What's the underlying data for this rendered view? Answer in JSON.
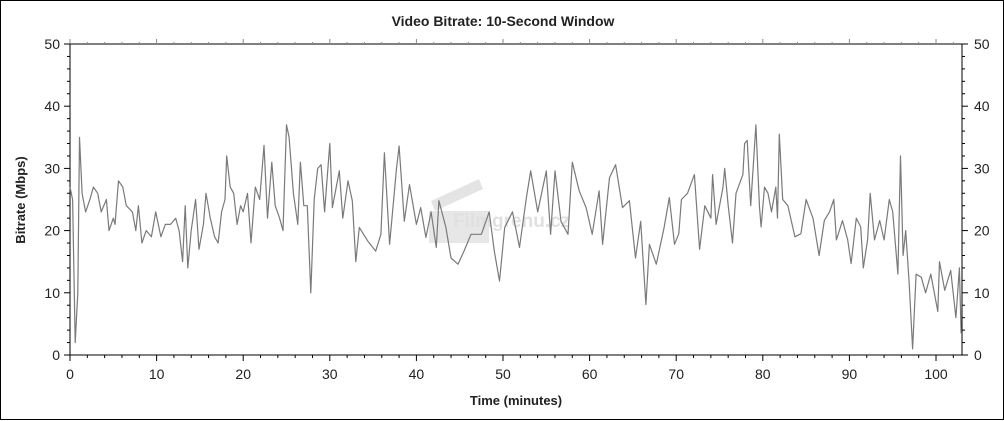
{
  "chart_data": {
    "type": "line",
    "title": "Video Bitrate: 10-Second Window",
    "xlabel": "Time (minutes)",
    "ylabel": "Bitrate (Mbps)",
    "xlim": [
      0,
      103
    ],
    "ylim": [
      0,
      50
    ],
    "x_ticks": [
      0,
      10,
      20,
      30,
      40,
      50,
      60,
      70,
      80,
      90,
      100
    ],
    "y_ticks": [
      0,
      10,
      20,
      30,
      40,
      50
    ],
    "secondary_y_axis": "right, same scale",
    "grid": false,
    "legend": "none",
    "line_color": "#7a7a7a",
    "watermark": "Filmgrenu.cz",
    "series": [
      {
        "x": [
          0,
          0.3,
          0.6,
          0.9,
          1.1,
          1.4,
          1.8,
          2.3,
          2.7,
          3.2,
          3.6,
          4.2,
          4.5,
          5,
          5.2,
          5.6,
          6.1,
          6.5,
          7.2,
          7.6,
          7.9,
          8.3,
          8.8,
          9.4,
          9.9,
          10.5,
          11,
          11.6,
          12.2,
          12.6,
          13,
          13.3,
          13.6,
          14,
          14.5,
          14.9,
          15.4,
          15.7,
          16.2,
          16.7,
          17.1,
          17.5,
          17.9,
          18.1,
          18.5,
          18.9,
          19.3,
          19.7,
          20,
          20.5,
          20.9,
          21.4,
          21.9,
          22.4,
          22.8,
          23.3,
          23.7,
          24.2,
          24.6,
          25,
          25.3,
          25.8,
          26.3,
          26.6,
          27,
          27.4,
          27.8,
          28.2,
          28.6,
          29,
          29.4,
          30,
          30.3,
          31.1,
          31.5,
          32.1,
          32.6,
          33,
          33.4,
          34.4,
          35.3,
          35.9,
          36.3,
          36.9,
          37.7,
          38,
          38.6,
          39.2,
          40,
          40.5,
          41.1,
          41.7,
          42.3,
          42.6,
          43.4,
          44,
          44.8,
          45.5,
          46.3,
          47.5,
          48.4,
          49,
          49.6,
          50.2,
          51.1,
          51.9,
          52.7,
          53.2,
          54,
          55,
          55.5,
          56,
          56.7,
          57.5,
          58,
          58.8,
          59.6,
          60.3,
          61.1,
          61.5,
          62.3,
          63,
          63.8,
          64.6,
          65.3,
          65.9,
          66.5,
          66.9,
          67.7,
          68.6,
          69.2,
          69.8,
          70.3,
          70.6,
          71.3,
          72.1,
          72.7,
          73.3,
          74,
          74.2,
          74.6,
          75.4,
          75.6,
          76,
          76.5,
          76.9,
          77.7,
          77.9,
          78.2,
          78.6,
          79.2,
          79.6,
          79.8,
          80.2,
          80.6,
          81,
          81.5,
          81.7,
          81.9,
          82.3,
          82.9,
          83.7,
          84.4,
          85,
          85.8,
          86.5,
          87.1,
          87.7,
          88.2,
          88.5,
          89.2,
          89.8,
          90.2,
          90.8,
          91.3,
          91.6,
          92.1,
          92.4,
          92.9,
          93.5,
          94,
          94.6,
          95,
          95.6,
          95.9,
          96.2,
          96.5,
          96.9,
          97.3,
          97.7,
          98.3,
          98.8,
          99.4,
          100.2,
          100.4,
          101,
          101.7,
          102.3,
          102.7,
          102.9
        ],
        "y": [
          27,
          25,
          2,
          10,
          35,
          26,
          23,
          25,
          27,
          26,
          23,
          25,
          20,
          22,
          21,
          28,
          27,
          24,
          23,
          20,
          24,
          18,
          20,
          19,
          23,
          19,
          21,
          21,
          22,
          20,
          15,
          24,
          14,
          20,
          25,
          17,
          21,
          26,
          22,
          19,
          18,
          23,
          25,
          32,
          27,
          26,
          21,
          24,
          23,
          26,
          18,
          27,
          25,
          33.7,
          22,
          31,
          24,
          22,
          20,
          37,
          35,
          26,
          21,
          31,
          24,
          24,
          10,
          25,
          30,
          30.6,
          23,
          34,
          23.7,
          29.6,
          22,
          28,
          24.8,
          15,
          20.5,
          18.3,
          16.7,
          19.4,
          32.5,
          17.8,
          30,
          33.6,
          21.5,
          27.4,
          21,
          23.7,
          18.9,
          23,
          17.3,
          24.8,
          20.5,
          15.6,
          14.6,
          16.7,
          19.4,
          19.4,
          23,
          16.7,
          11.9,
          20.5,
          23,
          17.3,
          25.3,
          29.6,
          23,
          29.6,
          19.4,
          29.6,
          21.5,
          19.4,
          31,
          26.4,
          23.7,
          19.4,
          26.4,
          17.8,
          28.5,
          30.6,
          23.7,
          24.8,
          15.6,
          21.5,
          8.1,
          17.8,
          14.6,
          20.5,
          25.3,
          17.8,
          19.5,
          25,
          26,
          29,
          17,
          24,
          22,
          29,
          21,
          27,
          30,
          24,
          18,
          26,
          29,
          34,
          34.5,
          24,
          37,
          24,
          20.6,
          27,
          26,
          23,
          27,
          22,
          35.5,
          25,
          24,
          19,
          19.5,
          25,
          22,
          16,
          21.6,
          23,
          25,
          18.5,
          21.6,
          18.5,
          14.7,
          22,
          20.6,
          14,
          18.5,
          26,
          18.5,
          21.6,
          18.5,
          25,
          23,
          13,
          32,
          16,
          20,
          11.5,
          1,
          13,
          12.5,
          10,
          13,
          7,
          15,
          10.4,
          13.6,
          6,
          14,
          3.5
        ]
      }
    ]
  }
}
